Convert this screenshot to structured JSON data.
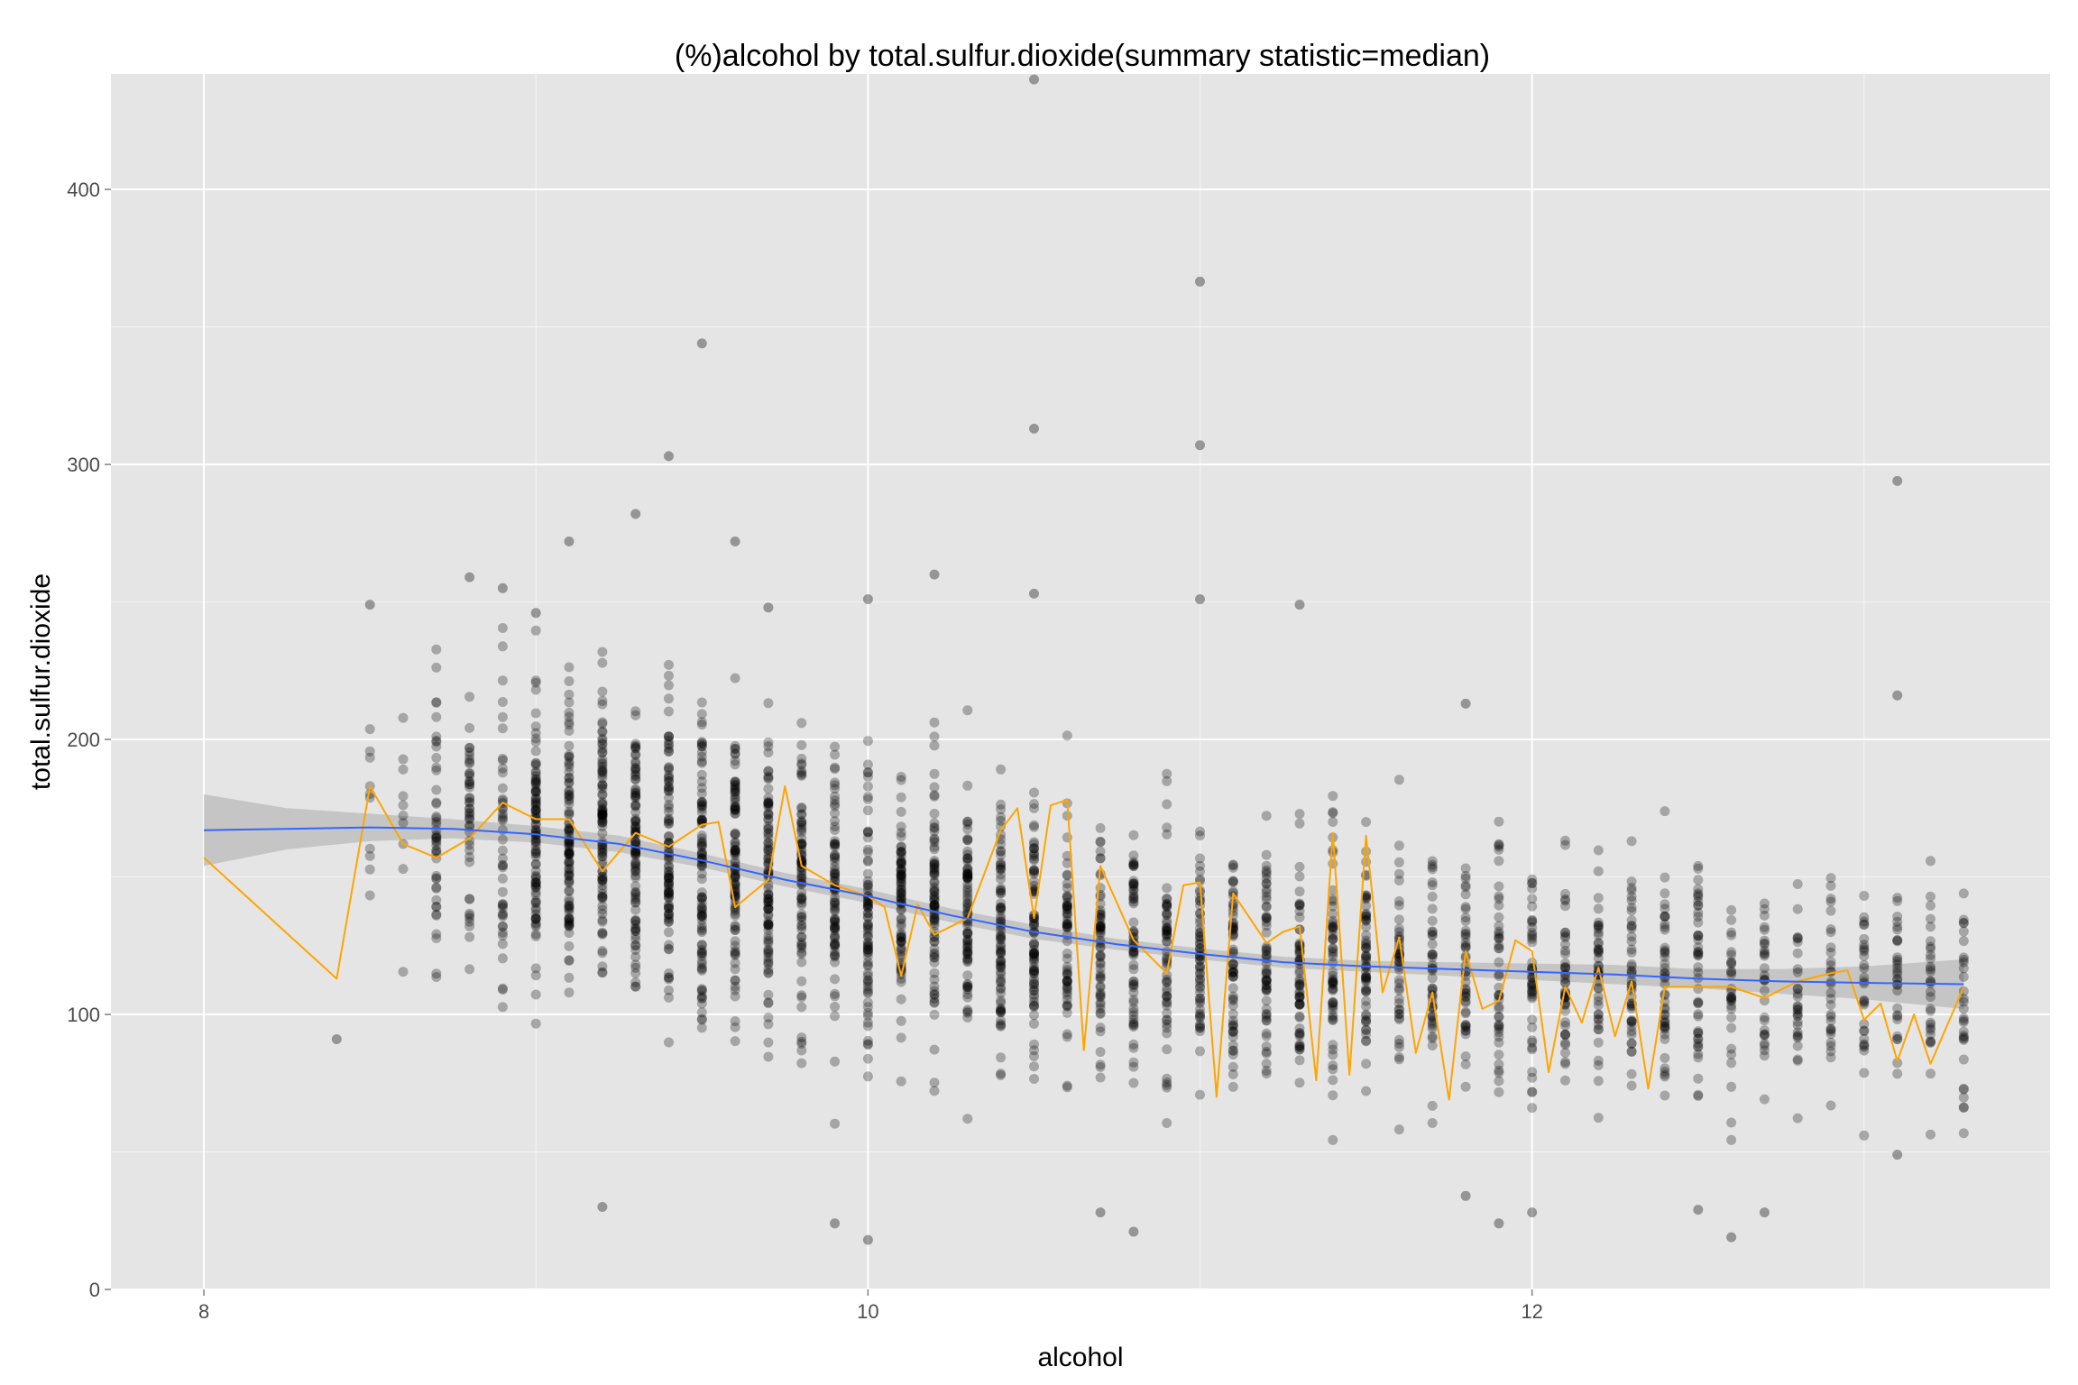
{
  "chart_data": {
    "type": "scatter",
    "title": "(%)alcohol by total.sulfur.dioxide(summary statistic=median)",
    "xlabel": "alcohol",
    "ylabel": "total.sulfur.dioxide",
    "xlim": [
      7.72,
      13.56
    ],
    "ylim": [
      0,
      442
    ],
    "x_ticks": [
      8,
      10,
      12
    ],
    "x_tick_labels": [
      "8",
      "10",
      "12"
    ],
    "y_ticks": [
      0,
      100,
      200,
      300,
      400
    ],
    "y_tick_labels": [
      "0",
      "100",
      "200",
      "300",
      "400"
    ],
    "grid": true,
    "legend": "none",
    "colors": {
      "panel_background": "#e5e5e5",
      "grid_major": "#ffffff",
      "grid_minor": "#f2f2f2",
      "points": "#000000",
      "median_line": "#ffa500",
      "smooth_line": "#3366ff",
      "confidence_band": "#bfbfbf"
    },
    "outliers": [
      {
        "x": 10.5,
        "y": 440
      },
      {
        "x": 11.0,
        "y": 366.5
      },
      {
        "x": 9.5,
        "y": 344
      },
      {
        "x": 10.5,
        "y": 313
      },
      {
        "x": 11.0,
        "y": 307
      },
      {
        "x": 9.4,
        "y": 303
      },
      {
        "x": 13.1,
        "y": 294
      },
      {
        "x": 9.3,
        "y": 282
      },
      {
        "x": 9.1,
        "y": 272
      },
      {
        "x": 9.6,
        "y": 272
      },
      {
        "x": 10.2,
        "y": 260
      },
      {
        "x": 8.8,
        "y": 259
      },
      {
        "x": 8.9,
        "y": 255
      },
      {
        "x": 8.5,
        "y": 249
      },
      {
        "x": 11.3,
        "y": 249
      },
      {
        "x": 10.5,
        "y": 253
      },
      {
        "x": 11.0,
        "y": 251
      },
      {
        "x": 10.0,
        "y": 251
      },
      {
        "x": 9.0,
        "y": 246
      },
      {
        "x": 9.7,
        "y": 248
      },
      {
        "x": 13.1,
        "y": 216
      },
      {
        "x": 11.8,
        "y": 213
      },
      {
        "x": 9.2,
        "y": 30
      },
      {
        "x": 9.9,
        "y": 24
      },
      {
        "x": 10.0,
        "y": 18
      },
      {
        "x": 10.8,
        "y": 21
      },
      {
        "x": 12.6,
        "y": 19
      },
      {
        "x": 12.0,
        "y": 28
      },
      {
        "x": 11.9,
        "y": 24
      },
      {
        "x": 11.8,
        "y": 34
      },
      {
        "x": 12.7,
        "y": 28
      },
      {
        "x": 10.7,
        "y": 28
      },
      {
        "x": 12.5,
        "y": 29
      },
      {
        "x": 8.4,
        "y": 91
      },
      {
        "x": 13.1,
        "y": 49
      }
    ],
    "median_line": {
      "x": [
        8.0,
        8.4,
        8.5,
        8.6,
        8.7,
        8.8,
        8.9,
        9.0,
        9.1,
        9.2,
        9.3,
        9.4,
        9.5,
        9.55,
        9.6,
        9.7,
        9.75,
        9.8,
        9.9,
        10.0,
        10.05,
        10.1,
        10.15,
        10.2,
        10.3,
        10.4,
        10.45,
        10.5,
        10.55,
        10.6,
        10.65,
        10.7,
        10.8,
        10.9,
        10.95,
        11.0,
        11.05,
        11.1,
        11.2,
        11.25,
        11.3,
        11.35,
        11.4,
        11.45,
        11.5,
        11.55,
        11.6,
        11.65,
        11.7,
        11.75,
        11.8,
        11.85,
        11.9,
        11.95,
        12.0,
        12.05,
        12.1,
        12.15,
        12.2,
        12.25,
        12.3,
        12.35,
        12.4,
        12.45,
        12.5,
        12.55,
        12.6,
        12.7,
        12.8,
        12.9,
        12.95,
        13.0,
        13.05,
        13.1,
        13.15,
        13.2,
        13.3
      ],
      "y": [
        157,
        113,
        183,
        162,
        157,
        164,
        177,
        171,
        171,
        152,
        166,
        161,
        169,
        170,
        139,
        149,
        183,
        154,
        147,
        143,
        139,
        114,
        140,
        129,
        135,
        167,
        175,
        135,
        176,
        178,
        87,
        154,
        127,
        115,
        147,
        148,
        70,
        144,
        126,
        130,
        132,
        76,
        166,
        78,
        165,
        108,
        128,
        86,
        108,
        69,
        123,
        102,
        105,
        127,
        123,
        79,
        110,
        97,
        117,
        92,
        112,
        73,
        110,
        110,
        110,
        110,
        110,
        106,
        112,
        115,
        116,
        98,
        104,
        83,
        100,
        82,
        110
      ]
    },
    "smooth_line": {
      "x": [
        8.0,
        8.25,
        8.5,
        8.75,
        9.0,
        9.25,
        9.5,
        9.75,
        10.0,
        10.25,
        10.5,
        10.75,
        11.0,
        11.25,
        11.5,
        11.75,
        12.0,
        12.25,
        12.5,
        12.75,
        13.0,
        13.3
      ],
      "y": [
        167,
        167.5,
        168,
        167.5,
        165.5,
        162,
        156,
        149,
        143,
        136,
        130,
        125.5,
        122,
        119,
        117.5,
        116.5,
        115.5,
        114.5,
        113,
        112,
        111.5,
        111
      ],
      "ci_lower": [
        154,
        160,
        163,
        164,
        162.5,
        159,
        153.5,
        146.5,
        140.5,
        133.5,
        127.5,
        123.5,
        120,
        117,
        115.5,
        114,
        112.5,
        111,
        109.5,
        107.5,
        105.5,
        102
      ],
      "ci_upper": [
        180,
        175,
        173,
        171,
        168.5,
        165,
        158.5,
        151.5,
        145.5,
        138.5,
        132.5,
        127.5,
        124,
        121,
        119.5,
        119,
        118.5,
        118,
        116.5,
        116.5,
        117.5,
        120
      ]
    }
  }
}
